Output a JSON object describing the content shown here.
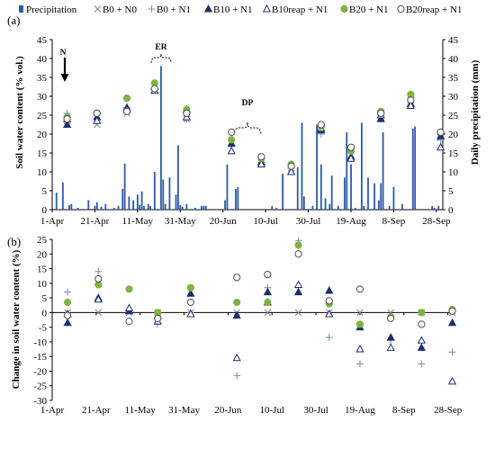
{
  "colors": {
    "precip": "#2e5aa8",
    "b0n0": "#8a8a8a",
    "b0n1": "#8090c0",
    "b10n1": "#1f2f6e",
    "b10reap": "#1f2f6e",
    "b20n1": "#7cb342",
    "b20reap": "#4d4d4d"
  },
  "annotations": {
    "n": "N",
    "er": "ER",
    "dp": "DP"
  },
  "chart_data": [
    {
      "type": "bar+scatter",
      "panel_label": "(a)",
      "ylabel": "Soil water content (% vol.)",
      "ylabel_right": "Daily precipitation (mm)",
      "ylim": [
        0,
        45
      ],
      "yticks": [
        "0",
        "5",
        "10",
        "15",
        "20",
        "25",
        "30",
        "35",
        "40",
        "45"
      ],
      "ylim_right": [
        0,
        45
      ],
      "yticks_right": [
        "0",
        "5",
        "10",
        "15",
        "20",
        "25",
        "30",
        "35",
        "40",
        "45"
      ],
      "x_day_range": [
        0,
        183
      ],
      "xtick_labels": [
        "1-Apr",
        "21-Apr",
        "11-May",
        "31-May",
        "20-Jun",
        "10-Jul",
        "30-Jul",
        "19-Aug",
        "8-Sep",
        "28-Sep"
      ],
      "xtick_days": [
        0,
        20,
        40,
        60,
        80,
        100,
        120,
        140,
        160,
        180
      ],
      "legend": [
        "Precipitation",
        "B0 + N0",
        "B0 + N1",
        "B10 + N1",
        "B10reap + N1",
        "B20 + N1",
        "B20reap + N1"
      ],
      "precipitation": {
        "name": "Precipitation",
        "days": [
          2,
          5,
          8,
          9,
          12,
          17,
          20,
          21,
          23,
          25,
          29,
          31,
          33,
          34,
          36,
          38,
          40,
          41,
          42,
          43,
          45,
          46,
          48,
          51,
          52,
          53,
          55,
          58,
          59,
          60,
          61,
          63,
          67,
          70,
          71,
          72,
          81,
          82,
          86,
          87,
          103,
          105,
          108,
          115,
          117,
          118,
          122,
          124,
          126,
          128,
          130,
          131,
          134,
          137,
          138,
          140,
          142,
          145,
          146,
          148,
          151,
          153,
          154,
          155,
          158,
          160,
          164,
          169,
          170,
          178,
          179,
          181
        ],
        "values": [
          4.5,
          7.2,
          1.2,
          1.5,
          0.5,
          2.5,
          1.0,
          2.0,
          0.8,
          1.5,
          0.5,
          1.0,
          5.5,
          12.2,
          3.5,
          2.5,
          4.0,
          1.2,
          4.8,
          1.0,
          1.5,
          1.0,
          10.0,
          38.0,
          8.0,
          1.5,
          8.5,
          4.0,
          17.0,
          1.2,
          0.8,
          1.5,
          0.5,
          1.0,
          1.0,
          1.0,
          2.5,
          12.0,
          5.5,
          6.0,
          1.0,
          0.5,
          9.5,
          11.2,
          23.0,
          3.5,
          1.0,
          22.5,
          12.0,
          3.0,
          1.5,
          9.0,
          1.0,
          8.5,
          20.5,
          12.0,
          0.5,
          23.0,
          1.0,
          8.5,
          7.0,
          2.5,
          7.0,
          20.5,
          1.0,
          6.0,
          1.5,
          21.5,
          22.0,
          1.0,
          0.5,
          1.0
        ]
      },
      "measure_days": [
        7,
        21,
        35,
        48,
        63,
        84,
        98,
        112,
        126,
        140,
        154,
        168,
        182
      ],
      "series": [
        {
          "name": "B0 + N0",
          "values": [
            23.5,
            22.5,
            25.5,
            31.5,
            24.0,
            17.5,
            12.5,
            11.0,
            21.5,
            14.5,
            24.5,
            29.0,
            19.0
          ]
        },
        {
          "name": "B0 + N1",
          "values": [
            25.5,
            25.5,
            27.0,
            31.8,
            24.0,
            17.0,
            12.5,
            11.0,
            20.0,
            13.5,
            25.0,
            29.0,
            18.5
          ]
        },
        {
          "name": "B10 + N1",
          "values": [
            22.5,
            24.5,
            27.0,
            32.5,
            26.5,
            17.5,
            12.5,
            10.0,
            21.0,
            14.0,
            24.0,
            28.0,
            19.5
          ]
        },
        {
          "name": "B10reap + N1",
          "values": [
            24.0,
            23.5,
            26.5,
            31.5,
            24.5,
            15.5,
            12.0,
            10.0,
            21.5,
            13.5,
            25.0,
            27.5,
            16.5
          ]
        },
        {
          "name": "B20 + N1",
          "values": [
            24.5,
            25.5,
            29.5,
            33.5,
            26.5,
            18.5,
            13.5,
            12.0,
            22.0,
            15.5,
            26.0,
            30.5,
            20.5
          ]
        },
        {
          "name": "B20reap + N1",
          "values": [
            24.0,
            25.5,
            26.0,
            32.0,
            25.5,
            20.5,
            14.0,
            11.5,
            22.5,
            16.5,
            25.5,
            29.0,
            20.5
          ]
        }
      ]
    },
    {
      "type": "scatter",
      "panel_label": "(b)",
      "ylabel": "Change in soil water content (%)",
      "ylim": [
        -30,
        25
      ],
      "yticks": [
        "-30",
        "-25",
        "-20",
        "-15",
        "-10",
        "-5",
        "0",
        "5",
        "10",
        "15",
        "20",
        "25"
      ],
      "xtick_labels": [
        "1-Apr",
        "21-Apr",
        "11-May",
        "31-May",
        "20-Jun",
        "10-Jul",
        "30-Jul",
        "19-Aug",
        "8-Sep",
        "28-Sep"
      ],
      "measure_days": [
        7,
        21,
        35,
        48,
        63,
        84,
        98,
        112,
        126,
        140,
        154,
        168,
        182
      ],
      "series": [
        {
          "name": "B0 + N0",
          "values": [
            0,
            0,
            0,
            0,
            0,
            0,
            0,
            0,
            0,
            0,
            0,
            0,
            0
          ]
        },
        {
          "name": "B0 + N1",
          "values": [
            7,
            14,
            1,
            -4,
            0,
            -21.5,
            8.5,
            24.5,
            -8.5,
            -17.5,
            -9.5,
            -17.5,
            -13.5
          ]
        },
        {
          "name": "B10 + N1",
          "values": [
            -3.5,
            5,
            0.5,
            -1,
            6.5,
            -1,
            7,
            7,
            7.5,
            -5,
            -8.5,
            -12,
            -3.5
          ]
        },
        {
          "name": "B10reap + N1",
          "values": [
            -0.5,
            4.5,
            1.5,
            -3,
            -0.5,
            -15.5,
            3.5,
            9.5,
            -0.5,
            -12.5,
            -12,
            -9.5,
            -23.5
          ]
        },
        {
          "name": "B20 + N1",
          "values": [
            3.5,
            9.5,
            8,
            0,
            8.5,
            3.5,
            3.5,
            23,
            3,
            -4,
            -1.5,
            0,
            1
          ]
        },
        {
          "name": "B20reap + N1",
          "values": [
            -1,
            11.5,
            -3,
            -2,
            3.5,
            12,
            13,
            20,
            4,
            8,
            -2,
            -4,
            0.5
          ]
        }
      ]
    }
  ]
}
